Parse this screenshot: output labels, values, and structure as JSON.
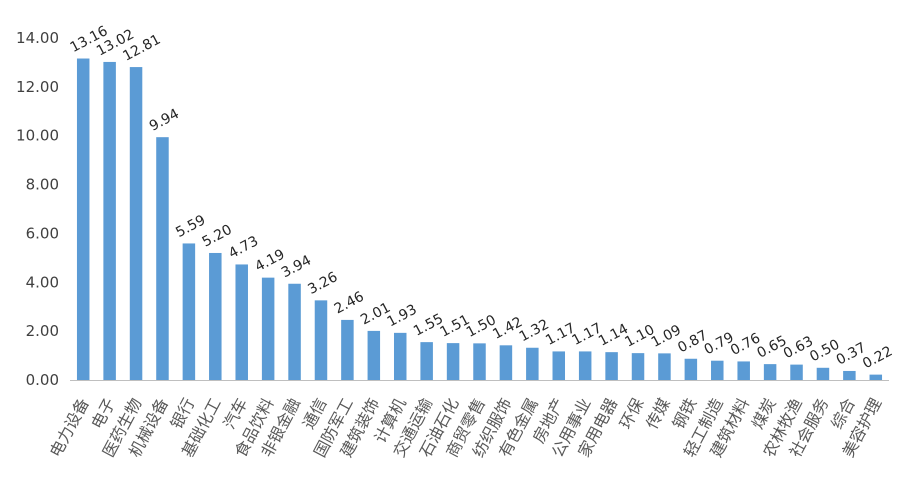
{
  "chart_data": {
    "type": "bar",
    "title": "",
    "xlabel": "",
    "ylabel": "",
    "ylim": [
      0,
      14
    ],
    "yticks": [
      "0.00",
      "2.00",
      "4.00",
      "6.00",
      "8.00",
      "10.00",
      "12.00",
      "14.00"
    ],
    "grid": false,
    "legend": "none",
    "bar_color": "#5b9bd5",
    "categories": [
      "电力设备",
      "电子",
      "医药生物",
      "机械设备",
      "银行",
      "基础化工",
      "汽车",
      "食品饮料",
      "非银金融",
      "通信",
      "国防军工",
      "建筑装饰",
      "计算机",
      "交通运输",
      "石油石化",
      "商贸零售",
      "纺织服饰",
      "有色金属",
      "房地产",
      "公用事业",
      "家用电器",
      "环保",
      "传媒",
      "钢铁",
      "轻工制造",
      "建筑材料",
      "煤炭",
      "农林牧渔",
      "社会服务",
      "综合",
      "美容护理"
    ],
    "values": [
      13.16,
      13.02,
      12.81,
      9.94,
      5.59,
      5.2,
      4.73,
      4.19,
      3.94,
      3.26,
      2.46,
      2.01,
      1.93,
      1.55,
      1.51,
      1.5,
      1.42,
      1.32,
      1.17,
      1.17,
      1.14,
      1.1,
      1.09,
      0.87,
      0.79,
      0.76,
      0.65,
      0.63,
      0.5,
      0.37,
      0.22
    ],
    "value_labels": [
      "13.16",
      "13.02",
      "12.81",
      "9.94",
      "5.59",
      "5.20",
      "4.73",
      "4.19",
      "3.94",
      "3.26",
      "2.46",
      "2.01",
      "1.93",
      "1.55",
      "1.51",
      "1.50",
      "1.42",
      "1.32",
      "1.17",
      "1.17",
      "1.14",
      "1.10",
      "1.09",
      "0.87",
      "0.79",
      "0.76",
      "0.65",
      "0.63",
      "0.50",
      "0.37",
      "0.22"
    ]
  }
}
